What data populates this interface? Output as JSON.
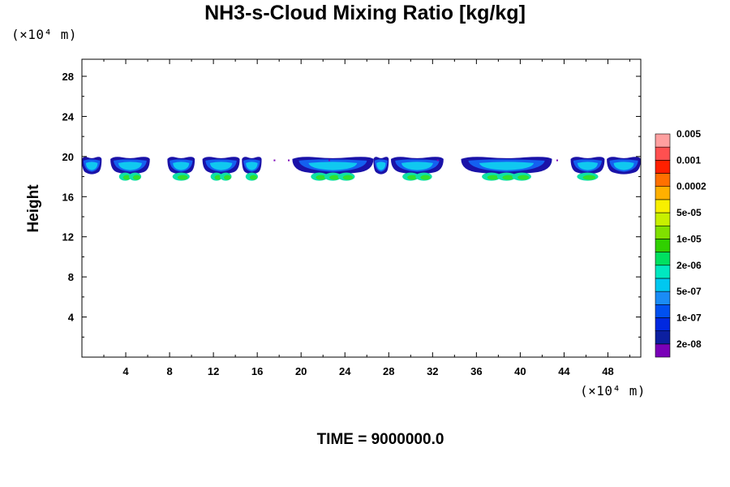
{
  "chart_data": {
    "type": "heatmap",
    "title": "NH3-s-Cloud Mixing Ratio [kg/kg]",
    "ylabel": "Height",
    "xlabel": "",
    "x_unit": "(×10⁴ m)",
    "y_unit": "(×10⁴ m)",
    "xlim": [
      0,
      51
    ],
    "ylim": [
      0,
      29.7
    ],
    "xticks": [
      "4",
      "8",
      "12",
      "16",
      "20",
      "24",
      "28",
      "32",
      "36",
      "40",
      "44",
      "48"
    ],
    "yticks": [
      "4",
      "8",
      "12",
      "16",
      "20",
      "24",
      "28"
    ],
    "time_label": "TIME = 9000000.0",
    "colorbar": {
      "colors": [
        "#7a00b8",
        "#0c1fa0",
        "#0028e0",
        "#0050f0",
        "#1a8cf5",
        "#00c8f0",
        "#00e8c0",
        "#00e060",
        "#30d000",
        "#80e000",
        "#c8f000",
        "#f8f000",
        "#ffb000",
        "#ff7000",
        "#ff2000",
        "#ff5050",
        "#ffa0a0"
      ],
      "labels": [
        "2e-08",
        "1e-07",
        "5e-07",
        "2e-06",
        "1e-05",
        "5e-05",
        "0.0002",
        "0.001",
        "0.005"
      ]
    },
    "cloud_layer": {
      "base_height": 17.5,
      "top_height": 20.0,
      "clouds": [
        {
          "x_start": 0.0,
          "x_end": 1.8,
          "core": 0
        },
        {
          "x_start": 2.6,
          "x_end": 6.2,
          "core": 2
        },
        {
          "x_start": 7.8,
          "x_end": 10.3,
          "core": 1
        },
        {
          "x_start": 11.0,
          "x_end": 14.4,
          "core": 2
        },
        {
          "x_start": 14.6,
          "x_end": 16.4,
          "core": 1
        },
        {
          "x_start": 19.2,
          "x_end": 26.6,
          "core": 3
        },
        {
          "x_start": 26.6,
          "x_end": 28.0,
          "core": 0
        },
        {
          "x_start": 28.2,
          "x_end": 33.0,
          "core": 2
        },
        {
          "x_start": 34.6,
          "x_end": 42.9,
          "core": 3
        },
        {
          "x_start": 44.6,
          "x_end": 47.7,
          "core": 1
        },
        {
          "x_start": 47.9,
          "x_end": 51.0,
          "core": 0
        }
      ]
    }
  }
}
